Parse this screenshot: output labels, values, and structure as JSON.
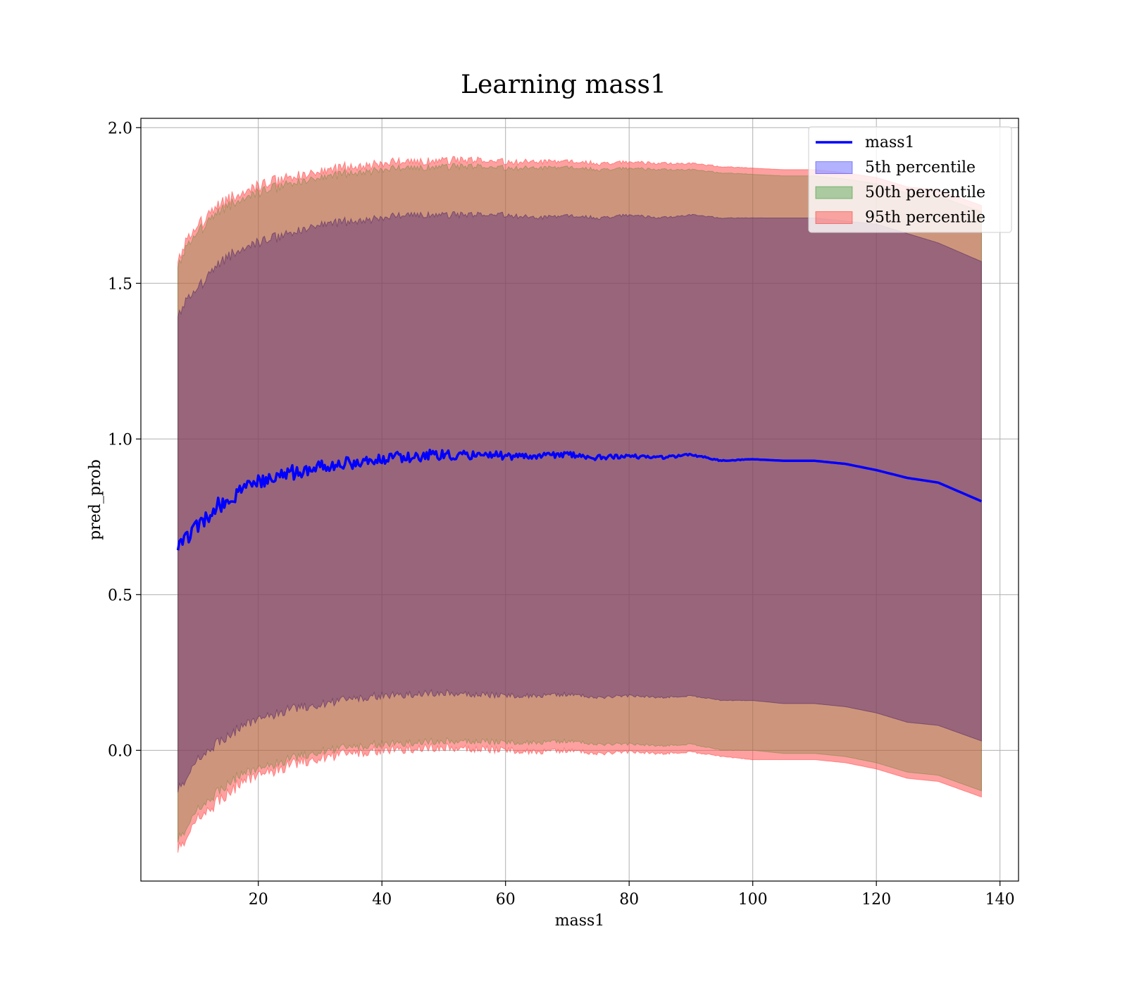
{
  "chart_data": {
    "type": "line",
    "title": "Learning mass1",
    "xlabel": "mass1",
    "ylabel": "pred_prob",
    "xlim": [
      1,
      143
    ],
    "ylim": [
      -0.42,
      2.03
    ],
    "xticks": [
      20,
      40,
      60,
      80,
      100,
      120,
      140
    ],
    "yticks": [
      0.0,
      0.5,
      1.0,
      1.5,
      2.0
    ],
    "xtick_labels": [
      "20",
      "40",
      "60",
      "80",
      "100",
      "120",
      "140"
    ],
    "ytick_labels": [
      "0.0",
      "0.5",
      "1.0",
      "1.5",
      "2.0"
    ],
    "grid": true,
    "legend_position": "upper right",
    "x": [
      7,
      10,
      13,
      16,
      20,
      25,
      30,
      35,
      40,
      45,
      50,
      55,
      60,
      65,
      70,
      75,
      80,
      85,
      90,
      95,
      100,
      105,
      110,
      115,
      120,
      125,
      130,
      137
    ],
    "series": [
      {
        "name": "mass1",
        "kind": "line",
        "color": "#0000ff",
        "values": [
          0.64,
          0.72,
          0.78,
          0.82,
          0.86,
          0.89,
          0.91,
          0.925,
          0.935,
          0.945,
          0.95,
          0.95,
          0.945,
          0.945,
          0.95,
          0.94,
          0.945,
          0.94,
          0.95,
          0.93,
          0.935,
          0.93,
          0.93,
          0.92,
          0.9,
          0.875,
          0.86,
          0.8
        ]
      },
      {
        "name": "5th percentile",
        "kind": "band",
        "color": "#0000ff",
        "lower": [
          -0.12,
          -0.04,
          0.02,
          0.06,
          0.1,
          0.13,
          0.15,
          0.165,
          0.175,
          0.18,
          0.185,
          0.18,
          0.175,
          0.175,
          0.18,
          0.17,
          0.175,
          0.17,
          0.175,
          0.16,
          0.16,
          0.15,
          0.15,
          0.14,
          0.12,
          0.09,
          0.08,
          0.03
        ],
        "upper": [
          1.41,
          1.48,
          1.55,
          1.6,
          1.63,
          1.66,
          1.69,
          1.7,
          1.71,
          1.72,
          1.72,
          1.72,
          1.72,
          1.71,
          1.72,
          1.71,
          1.72,
          1.71,
          1.72,
          1.71,
          1.71,
          1.71,
          1.71,
          1.7,
          1.69,
          1.66,
          1.63,
          1.57
        ]
      },
      {
        "name": "50th percentile",
        "kind": "band",
        "color": "#008000",
        "lower": [
          -0.28,
          -0.2,
          -0.14,
          -0.09,
          -0.06,
          -0.03,
          0.0,
          0.01,
          0.02,
          0.025,
          0.03,
          0.03,
          0.025,
          0.025,
          0.03,
          0.02,
          0.02,
          0.015,
          0.02,
          0.0,
          0.0,
          -0.01,
          -0.01,
          -0.02,
          -0.04,
          -0.07,
          -0.08,
          -0.13
        ]
      },
      {
        "name": "95th percentile",
        "kind": "band",
        "color": "#ff0000"
      }
    ],
    "band_50_upper": [
      1.57,
      1.66,
      1.72,
      1.76,
      1.79,
      1.82,
      1.84,
      1.855,
      1.865,
      1.87,
      1.875,
      1.875,
      1.87,
      1.87,
      1.875,
      1.865,
      1.87,
      1.865,
      1.865,
      1.855,
      1.85,
      1.845,
      1.845,
      1.835,
      1.82,
      1.79,
      1.78,
      1.73
    ],
    "band_95_lower": [
      -0.31,
      -0.23,
      -0.17,
      -0.12,
      -0.08,
      -0.05,
      -0.02,
      -0.01,
      0.0,
      0.005,
      0.01,
      0.005,
      0.0,
      -0.005,
      0.0,
      -0.01,
      -0.005,
      -0.01,
      -0.005,
      -0.02,
      -0.03,
      -0.03,
      -0.03,
      -0.04,
      -0.06,
      -0.09,
      -0.1,
      -0.15
    ],
    "band_95_upper": [
      1.59,
      1.68,
      1.74,
      1.78,
      1.81,
      1.84,
      1.86,
      1.875,
      1.885,
      1.89,
      1.895,
      1.895,
      1.89,
      1.89,
      1.895,
      1.885,
      1.89,
      1.885,
      1.885,
      1.875,
      1.87,
      1.865,
      1.865,
      1.855,
      1.84,
      1.81,
      1.8,
      1.75
    ]
  },
  "legend": {
    "items": [
      {
        "label": "mass1",
        "kind": "line",
        "color": "#0000ff"
      },
      {
        "label": "5th percentile",
        "kind": "patch",
        "color": "#0000ff"
      },
      {
        "label": "50th percentile",
        "kind": "patch",
        "color": "#008000"
      },
      {
        "label": "95th percentile",
        "kind": "patch",
        "color": "#ff0000"
      }
    ]
  },
  "colors": {
    "fill_95": "#ff7f7f",
    "fill_50": "#96a06e",
    "fill_5": "#7a4a8a",
    "grid": "#b0b0b0",
    "line": "#0000ff"
  }
}
